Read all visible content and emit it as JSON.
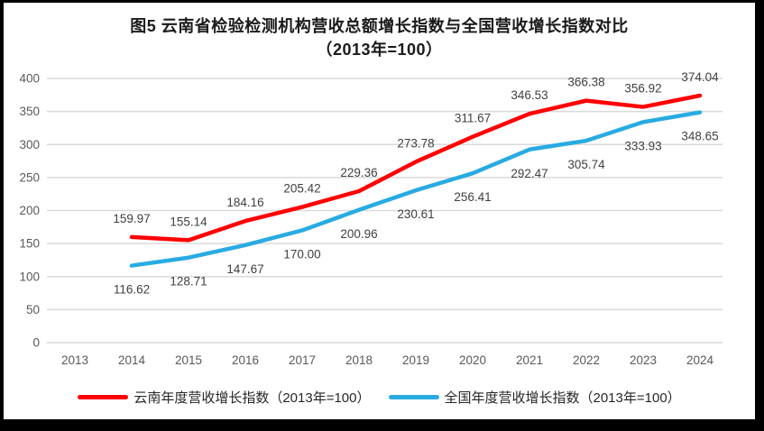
{
  "title": {
    "line1": "图5  云南省检验检测机构营收总额增长指数与全国营收增长指数对比",
    "line2": "（2013年=100）"
  },
  "colors": {
    "grid": "#d9d9d9",
    "axis_text": "#595959",
    "data_label": "#404040",
    "title_text": "#1a1a1a"
  },
  "chart_data": {
    "type": "line",
    "title": "图5 云南省检验检测机构营收总额增长指数与全国营收增长指数对比（2013年=100）",
    "categories": [
      "2013",
      "2014",
      "2015",
      "2016",
      "2017",
      "2018",
      "2019",
      "2020",
      "2021",
      "2022",
      "2023",
      "2024"
    ],
    "series": [
      {
        "name": "云南年度营收增长指数（2013年=100）",
        "color": "#ff0000",
        "label_position": "above",
        "values": [
          null,
          159.97,
          155.14,
          184.16,
          205.42,
          229.36,
          273.78,
          311.67,
          346.53,
          366.38,
          356.92,
          374.04
        ],
        "labels": [
          "",
          "159.97",
          "155.14",
          "184.16",
          "205.42",
          "229.36",
          "273.78",
          "311.67",
          "346.53",
          "366.38",
          "356.92",
          "374.04"
        ]
      },
      {
        "name": "全国年度营收增长指数（2013年=100）",
        "color": "#29abe2",
        "label_position": "below",
        "values": [
          null,
          116.62,
          128.71,
          147.67,
          170.0,
          200.96,
          230.61,
          256.41,
          292.47,
          305.74,
          333.93,
          348.65
        ],
        "labels": [
          "",
          "116.62",
          "128.71",
          "147.67",
          "170.00",
          "200.96",
          "230.61",
          "256.41",
          "292.47",
          "305.74",
          "333.93",
          "348.65"
        ]
      }
    ],
    "xlabel": "",
    "ylabel": "",
    "ylim": [
      0,
      400
    ],
    "ytick_step": 50,
    "yticks": [
      0,
      50,
      100,
      150,
      200,
      250,
      300,
      350,
      400
    ],
    "grid": "horizontal",
    "legend_position": "bottom"
  }
}
